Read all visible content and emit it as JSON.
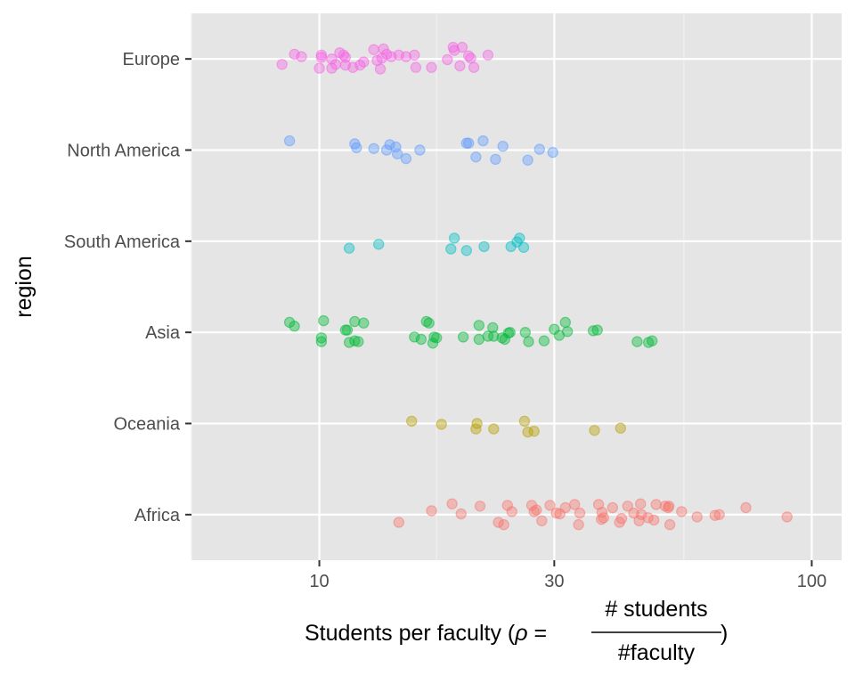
{
  "chart_data": {
    "type": "scatter",
    "jitter": "vertical",
    "xlabel": {
      "prefix": "Students per faculty (",
      "symbol": "ρ",
      "equals": " = ",
      "numerator": "#  students",
      "denominator": "#faculty",
      "suffix": ")"
    },
    "ylabel": "region",
    "x_scale": "log10",
    "xlim": [
      5.5,
      115
    ],
    "x_ticks": [
      10,
      30,
      100
    ],
    "x_tick_labels": [
      "10",
      "30",
      "100"
    ],
    "x_minor_ticks": [
      5.5,
      17.3,
      55
    ],
    "categories": [
      "Europe",
      "North America",
      "South America",
      "Asia",
      "Oceania",
      "Africa"
    ],
    "grid": true,
    "legend": "none",
    "panel_background": "#e5e5e5",
    "point_alpha": 0.4,
    "series": [
      {
        "category": "Europe",
        "color": "#F564E3",
        "points": [
          [
            8.4,
            -0.07
          ],
          [
            8.9,
            0.06
          ],
          [
            9.2,
            0.03
          ],
          [
            10.0,
            -0.12
          ],
          [
            10.1,
            0.05
          ],
          [
            10.1,
            0.02
          ],
          [
            10.6,
            0.0
          ],
          [
            10.6,
            -0.12
          ],
          [
            10.8,
            -0.07
          ],
          [
            11.0,
            0.08
          ],
          [
            11.2,
            0.05
          ],
          [
            11.3,
            0.02
          ],
          [
            11.3,
            -0.08
          ],
          [
            11.7,
            -0.11
          ],
          [
            12.1,
            -0.08
          ],
          [
            12.3,
            -0.04
          ],
          [
            12.9,
            0.12
          ],
          [
            13.1,
            -0.02
          ],
          [
            13.3,
            -0.13
          ],
          [
            13.4,
            0.01
          ],
          [
            13.5,
            0.13
          ],
          [
            13.7,
            0.06
          ],
          [
            14.0,
            0.03
          ],
          [
            14.5,
            0.05
          ],
          [
            15.0,
            0.03
          ],
          [
            15.6,
            0.05
          ],
          [
            15.7,
            -0.11
          ],
          [
            16.9,
            -0.11
          ],
          [
            18.2,
            -0.01
          ],
          [
            18.7,
            0.15
          ],
          [
            18.8,
            0.11
          ],
          [
            19.3,
            -0.09
          ],
          [
            19.5,
            0.15
          ],
          [
            20.1,
            0.04
          ],
          [
            20.3,
            0.01
          ],
          [
            20.6,
            -0.11
          ],
          [
            22.0,
            0.05
          ]
        ]
      },
      {
        "category": "North America",
        "color": "#619CFF",
        "points": [
          [
            8.7,
            0.12
          ],
          [
            11.8,
            0.08
          ],
          [
            11.9,
            0.03
          ],
          [
            12.9,
            0.02
          ],
          [
            13.7,
            0.0
          ],
          [
            13.9,
            0.07
          ],
          [
            14.3,
            0.04
          ],
          [
            14.4,
            -0.05
          ],
          [
            15.0,
            -0.11
          ],
          [
            16.0,
            0.0
          ],
          [
            19.9,
            0.09
          ],
          [
            20.1,
            0.09
          ],
          [
            20.8,
            -0.09
          ],
          [
            21.5,
            0.12
          ],
          [
            22.8,
            -0.12
          ],
          [
            23.6,
            0.05
          ],
          [
            26.5,
            -0.13
          ],
          [
            28.0,
            0.01
          ],
          [
            29.8,
            -0.03
          ]
        ]
      },
      {
        "category": "South America",
        "color": "#00BFC4",
        "points": [
          [
            11.5,
            -0.09
          ],
          [
            13.2,
            -0.04
          ],
          [
            18.5,
            -0.1
          ],
          [
            18.8,
            0.04
          ],
          [
            19.9,
            -0.12
          ],
          [
            21.6,
            -0.07
          ],
          [
            24.5,
            -0.07
          ],
          [
            25.2,
            -0.01
          ],
          [
            25.5,
            0.04
          ],
          [
            26.0,
            -0.08
          ]
        ]
      },
      {
        "category": "Asia",
        "color": "#00BA38",
        "points": [
          [
            8.7,
            0.13
          ],
          [
            8.9,
            0.08
          ],
          [
            10.1,
            -0.07
          ],
          [
            10.1,
            -0.12
          ],
          [
            10.2,
            0.15
          ],
          [
            11.3,
            0.03
          ],
          [
            11.4,
            0.03
          ],
          [
            11.5,
            -0.13
          ],
          [
            11.8,
            0.14
          ],
          [
            11.8,
            -0.11
          ],
          [
            12.0,
            -0.12
          ],
          [
            12.3,
            0.12
          ],
          [
            15.6,
            -0.06
          ],
          [
            16.1,
            -0.09
          ],
          [
            16.5,
            0.14
          ],
          [
            16.7,
            0.12
          ],
          [
            17.0,
            -0.14
          ],
          [
            17.3,
            -0.07
          ],
          [
            17.1,
            -0.06
          ],
          [
            19.6,
            -0.06
          ],
          [
            21.1,
            0.09
          ],
          [
            21.1,
            -0.09
          ],
          [
            22.0,
            -0.05
          ],
          [
            22.5,
            0.06
          ],
          [
            22.6,
            -0.05
          ],
          [
            23.5,
            -0.07
          ],
          [
            23.8,
            -0.09
          ],
          [
            24.2,
            -0.01
          ],
          [
            24.4,
            0.0
          ],
          [
            26.2,
            0.0
          ],
          [
            26.6,
            -0.12
          ],
          [
            28.6,
            -0.11
          ],
          [
            30.0,
            0.04
          ],
          [
            30.7,
            -0.04
          ],
          [
            31.6,
            0.13
          ],
          [
            31.9,
            0.01
          ],
          [
            36.0,
            0.02
          ],
          [
            36.7,
            0.03
          ],
          [
            44.2,
            -0.12
          ],
          [
            46.6,
            -0.13
          ],
          [
            47.4,
            -0.11
          ]
        ]
      },
      {
        "category": "Oceania",
        "color": "#B79F00",
        "points": [
          [
            15.4,
            0.03
          ],
          [
            17.7,
            -0.01
          ],
          [
            20.8,
            -0.07
          ],
          [
            20.9,
            0.0
          ],
          [
            22.6,
            -0.07
          ],
          [
            26.1,
            0.03
          ],
          [
            26.5,
            -0.11
          ],
          [
            27.3,
            -0.1
          ],
          [
            36.2,
            -0.09
          ],
          [
            40.9,
            -0.06
          ]
        ]
      },
      {
        "category": "Africa",
        "color": "#F8766D",
        "points": [
          [
            14.5,
            -0.1
          ],
          [
            16.9,
            0.05
          ],
          [
            18.6,
            0.14
          ],
          [
            19.4,
            0.01
          ],
          [
            21.2,
            0.11
          ],
          [
            23.1,
            -0.1
          ],
          [
            23.7,
            -0.13
          ],
          [
            24.1,
            0.12
          ],
          [
            24.6,
            0.04
          ],
          [
            27.0,
            0.12
          ],
          [
            27.3,
            0.04
          ],
          [
            27.6,
            0.06
          ],
          [
            28.3,
            -0.08
          ],
          [
            29.4,
            0.12
          ],
          [
            30.3,
            0.02
          ],
          [
            30.8,
            0.01
          ],
          [
            31.6,
            0.09
          ],
          [
            33.0,
            0.13
          ],
          [
            33.6,
            -0.13
          ],
          [
            33.8,
            0.02
          ],
          [
            36.9,
            0.13
          ],
          [
            37.4,
            -0.06
          ],
          [
            37.5,
            0.03
          ],
          [
            37.8,
            -0.04
          ],
          [
            39.4,
            0.09
          ],
          [
            40.7,
            -0.1
          ],
          [
            41.1,
            -0.05
          ],
          [
            42.3,
            0.11
          ],
          [
            43.5,
            0.02
          ],
          [
            44.6,
            -0.08
          ],
          [
            44.9,
            0.14
          ],
          [
            45.1,
            0.0
          ],
          [
            46.5,
            -0.04
          ],
          [
            47.8,
            -0.07
          ],
          [
            48.3,
            0.13
          ],
          [
            50.4,
            0.11
          ],
          [
            51.1,
            0.09
          ],
          [
            51.3,
            0.11
          ],
          [
            51.5,
            -0.13
          ],
          [
            54.4,
            0.04
          ],
          [
            58.5,
            -0.03
          ],
          [
            63.6,
            -0.01
          ],
          [
            64.9,
            0.0
          ],
          [
            73.5,
            0.09
          ],
          [
            89.1,
            -0.03
          ]
        ]
      }
    ]
  }
}
